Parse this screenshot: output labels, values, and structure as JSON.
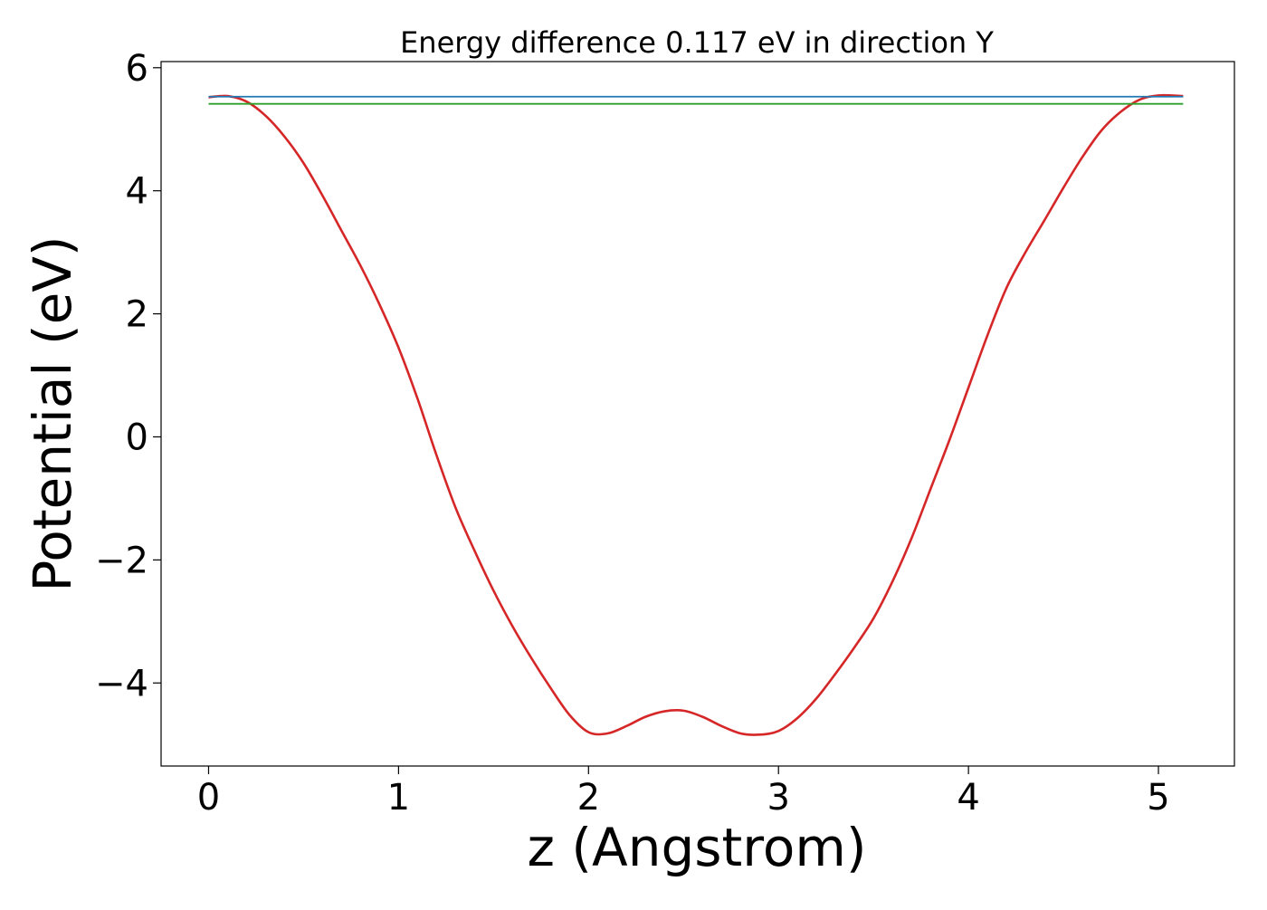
{
  "chart_data": {
    "type": "line",
    "title": "Energy difference 0.117 eV in direction Y",
    "xlabel": "z (Angstrom)",
    "ylabel": "Potential (eV)",
    "xlim": [
      -0.25,
      5.4
    ],
    "ylim": [
      -5.35,
      6.1
    ],
    "xticks": [
      0,
      1,
      2,
      3,
      4,
      5
    ],
    "xtick_labels": [
      "0",
      "1",
      "2",
      "3",
      "4",
      "5"
    ],
    "yticks": [
      -4,
      -2,
      0,
      2,
      4,
      6
    ],
    "ytick_labels": [
      "−4",
      "−2",
      "0",
      "2",
      "4",
      "6"
    ],
    "grid": false,
    "series": [
      {
        "color": "#d62728",
        "style": "curve",
        "x": [
          0,
          0.1,
          0.2,
          0.3,
          0.4,
          0.5,
          0.6,
          0.7,
          0.8,
          0.9,
          1.0,
          1.1,
          1.2,
          1.3,
          1.4,
          1.5,
          1.6,
          1.7,
          1.8,
          1.9,
          2.0,
          2.1,
          2.2,
          2.3,
          2.4,
          2.5,
          2.6,
          2.7,
          2.8,
          2.9,
          3.0,
          3.1,
          3.2,
          3.3,
          3.4,
          3.5,
          3.6,
          3.7,
          3.8,
          3.9,
          4.0,
          4.1,
          4.2,
          4.3,
          4.4,
          4.5,
          4.6,
          4.7,
          4.8,
          4.9,
          5.0,
          5.13
        ],
        "y": [
          5.52,
          5.54,
          5.45,
          5.22,
          4.88,
          4.45,
          3.92,
          3.35,
          2.78,
          2.15,
          1.45,
          0.62,
          -0.3,
          -1.15,
          -1.85,
          -2.5,
          -3.08,
          -3.6,
          -4.08,
          -4.52,
          -4.8,
          -4.82,
          -4.7,
          -4.55,
          -4.46,
          -4.45,
          -4.55,
          -4.7,
          -4.82,
          -4.84,
          -4.78,
          -4.57,
          -4.25,
          -3.85,
          -3.42,
          -2.95,
          -2.35,
          -1.65,
          -0.85,
          -0.05,
          0.8,
          1.65,
          2.42,
          3.0,
          3.52,
          4.05,
          4.55,
          4.98,
          5.28,
          5.48,
          5.55,
          5.54
        ]
      },
      {
        "color": "#1f77b4",
        "style": "line",
        "x": [
          0,
          5.13
        ],
        "y": [
          5.53,
          5.53
        ]
      },
      {
        "color": "#2ca02c",
        "style": "line",
        "x": [
          0,
          5.13
        ],
        "y": [
          5.413,
          5.413
        ]
      }
    ]
  }
}
